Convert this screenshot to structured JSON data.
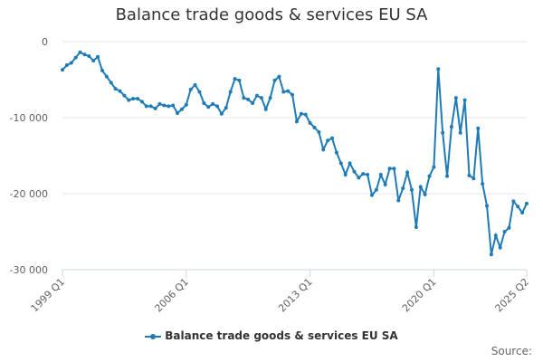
{
  "chart_data": {
    "type": "line",
    "title": "Balance trade goods & services EU SA",
    "xlabel": "",
    "ylabel": "",
    "ylim": [
      -30000,
      0
    ],
    "yticks": [
      0,
      -10000,
      -20000,
      -30000
    ],
    "ytick_labels": [
      "0",
      "-10 000",
      "-20 000",
      "-30 000"
    ],
    "xtick_labels": [
      "1999 Q1",
      "2006 Q1",
      "2013 Q1",
      "2020 Q1",
      "2025 Q2"
    ],
    "xtick_index": [
      0,
      28,
      56,
      84,
      105
    ],
    "grid": true,
    "legend": "bottom-center",
    "series": [
      {
        "name": "Balance trade goods & services EU SA",
        "color": "#1f7bb6",
        "values": [
          -3700,
          -3100,
          -2800,
          -2100,
          -1400,
          -1700,
          -1900,
          -2500,
          -2000,
          -3800,
          -4600,
          -5400,
          -6200,
          -6500,
          -7100,
          -7700,
          -7500,
          -7500,
          -7900,
          -8500,
          -8500,
          -8800,
          -8200,
          -8400,
          -8500,
          -8400,
          -9400,
          -8900,
          -8300,
          -6300,
          -5700,
          -6600,
          -8100,
          -8600,
          -8200,
          -8500,
          -9500,
          -8700,
          -6600,
          -4900,
          -5100,
          -7400,
          -7600,
          -8100,
          -7100,
          -7400,
          -8900,
          -7400,
          -5100,
          -4600,
          -6600,
          -6500,
          -7000,
          -10500,
          -9500,
          -9600,
          -10700,
          -11300,
          -11900,
          -14200,
          -13000,
          -12700,
          -14600,
          -16000,
          -17500,
          -16000,
          -17100,
          -17900,
          -17400,
          -17500,
          -20200,
          -19500,
          -17500,
          -18800,
          -16700,
          -16700,
          -20900,
          -19300,
          -17200,
          -19500,
          -24400,
          -19100,
          -20100,
          -17700,
          -16500,
          -3600,
          -12000,
          -17700,
          -11200,
          -7400,
          -12000,
          -7700,
          -17600,
          -18000,
          -11400,
          -18700,
          -21600,
          -28000,
          -25500,
          -27100,
          -25000,
          -24500,
          -21000,
          -21700,
          -22500,
          -21300
        ]
      }
    ]
  },
  "legend": {
    "label": "Balance trade goods & services EU SA"
  },
  "source_label": "Source:"
}
